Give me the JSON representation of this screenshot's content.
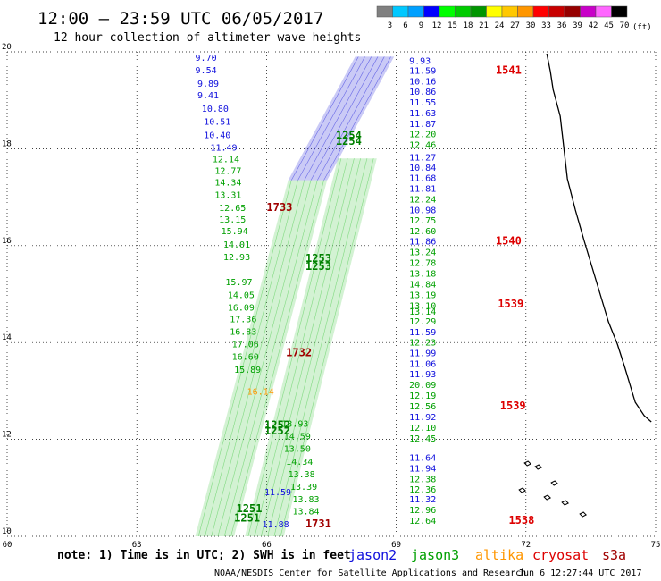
{
  "header": {
    "title": "12:00 – 23:59 UTC 06/05/2017",
    "subtitle": "12 hour collection of altimeter wave heights"
  },
  "color_scale": {
    "labels": [
      "3",
      "6",
      "9",
      "12",
      "15",
      "18",
      "21",
      "24",
      "27",
      "30",
      "33",
      "36",
      "39",
      "42",
      "45",
      "70"
    ],
    "colors": [
      "#808080",
      "#00c8ff",
      "#00a0ff",
      "#0000ff",
      "#00ff00",
      "#00cc00",
      "#009600",
      "#ffff00",
      "#ffc800",
      "#ff9600",
      "#ff0000",
      "#c80000",
      "#960000",
      "#c800c8",
      "#ff66ff",
      "#000000"
    ],
    "unit": "(ft)"
  },
  "legend": [
    {
      "name": "jason2",
      "color": "#1010dd"
    },
    {
      "name": "jason3",
      "color": "#00a000"
    },
    {
      "name": "altika",
      "color": "#ff9600"
    },
    {
      "name": "cryosat",
      "color": "#dd0000"
    },
    {
      "name": "s3a",
      "color": "#a00000"
    }
  ],
  "note": "note: 1) Time is in UTC; 2) SWH is in feet",
  "footer": {
    "credit": "NOAA/NESDIS Center for Satellite Applications and Research",
    "timestamp": "Jun  6 12:27:44 UTC 2017"
  },
  "chart_data": {
    "type": "scatter",
    "title": "12:00 – 23:59 UTC 06/05/2017",
    "subtitle": "12 hour collection of altimeter wave heights",
    "xlim": [
      60,
      75
    ],
    "ylim": [
      10,
      20
    ],
    "x_ticks": [
      60,
      63,
      66,
      69,
      72,
      75
    ],
    "y_ticks": [
      10,
      12,
      14,
      16,
      18,
      20
    ],
    "grid": true,
    "series": [
      {
        "name": "jason2",
        "color": "#1010dd",
        "points": [
          {
            "x": 64.35,
            "y": 19.82,
            "v": "9.70"
          },
          {
            "x": 64.35,
            "y": 19.56,
            "v": "9.54"
          },
          {
            "x": 64.4,
            "y": 19.28,
            "v": "9.89"
          },
          {
            "x": 64.4,
            "y": 19.04,
            "v": "9.41"
          },
          {
            "x": 64.5,
            "y": 18.76,
            "v": "10.80"
          },
          {
            "x": 64.55,
            "y": 18.5,
            "v": "10.51"
          },
          {
            "x": 64.55,
            "y": 18.22,
            "v": "10.40"
          },
          {
            "x": 64.7,
            "y": 17.96,
            "v": "11.49"
          },
          {
            "x": 65.9,
            "y": 10.18,
            "v": "11.88"
          },
          {
            "x": 65.95,
            "y": 10.85,
            "v": "11.59"
          },
          {
            "x": 69.3,
            "y": 19.75,
            "v": "9.93"
          },
          {
            "x": 69.3,
            "y": 19.55,
            "v": "11.59"
          },
          {
            "x": 69.3,
            "y": 19.33,
            "v": "10.16"
          },
          {
            "x": 69.3,
            "y": 19.11,
            "v": "10.86"
          },
          {
            "x": 69.3,
            "y": 18.89,
            "v": "11.55"
          },
          {
            "x": 69.3,
            "y": 18.67,
            "v": "11.63"
          },
          {
            "x": 69.3,
            "y": 18.45,
            "v": "11.87"
          },
          {
            "x": 69.3,
            "y": 17.76,
            "v": "11.27"
          },
          {
            "x": 69.3,
            "y": 17.55,
            "v": "10.84"
          },
          {
            "x": 69.3,
            "y": 17.33,
            "v": "11.68"
          },
          {
            "x": 69.3,
            "y": 17.11,
            "v": "11.81"
          },
          {
            "x": 69.3,
            "y": 16.67,
            "v": "10.98"
          },
          {
            "x": 69.3,
            "y": 16.02,
            "v": "11.86"
          },
          {
            "x": 69.3,
            "y": 14.15,
            "v": "11.59"
          },
          {
            "x": 69.3,
            "y": 13.72,
            "v": "11.99"
          },
          {
            "x": 69.3,
            "y": 13.5,
            "v": "11.06"
          },
          {
            "x": 69.3,
            "y": 13.28,
            "v": "11.93"
          },
          {
            "x": 69.3,
            "y": 12.4,
            "v": "11.92"
          },
          {
            "x": 69.3,
            "y": 11.56,
            "v": "11.64"
          },
          {
            "x": 69.3,
            "y": 11.34,
            "v": "11.94"
          },
          {
            "x": 69.3,
            "y": 10.7,
            "v": "11.32"
          }
        ]
      },
      {
        "name": "jason3",
        "color": "#00a000",
        "points": [
          {
            "x": 69.3,
            "y": 18.24,
            "v": "12.20"
          },
          {
            "x": 69.3,
            "y": 18.02,
            "v": "12.46"
          },
          {
            "x": 69.3,
            "y": 16.89,
            "v": "12.24"
          },
          {
            "x": 69.3,
            "y": 16.46,
            "v": "12.75"
          },
          {
            "x": 69.3,
            "y": 16.24,
            "v": "12.60"
          },
          {
            "x": 69.3,
            "y": 15.8,
            "v": "13.24"
          },
          {
            "x": 69.3,
            "y": 15.58,
            "v": "12.78"
          },
          {
            "x": 69.3,
            "y": 15.36,
            "v": "13.18"
          },
          {
            "x": 69.3,
            "y": 15.14,
            "v": "14.84"
          },
          {
            "x": 69.3,
            "y": 14.92,
            "v": "13.19"
          },
          {
            "x": 69.3,
            "y": 14.7,
            "v": "13.10"
          },
          {
            "x": 69.3,
            "y": 14.58,
            "v": "13.14"
          },
          {
            "x": 69.3,
            "y": 14.37,
            "v": "12.29"
          },
          {
            "x": 69.3,
            "y": 13.94,
            "v": "12.23"
          },
          {
            "x": 69.3,
            "y": 13.06,
            "v": "20.09"
          },
          {
            "x": 69.3,
            "y": 12.84,
            "v": "12.19"
          },
          {
            "x": 69.3,
            "y": 12.62,
            "v": "12.56"
          },
          {
            "x": 69.3,
            "y": 12.18,
            "v": "12.10"
          },
          {
            "x": 69.3,
            "y": 11.96,
            "v": "12.45"
          },
          {
            "x": 69.3,
            "y": 11.12,
            "v": "12.38"
          },
          {
            "x": 69.3,
            "y": 10.9,
            "v": "12.36"
          },
          {
            "x": 69.3,
            "y": 10.48,
            "v": "12.96"
          },
          {
            "x": 69.3,
            "y": 10.26,
            "v": "12.64"
          },
          {
            "x": 64.75,
            "y": 17.72,
            "v": "12.14"
          },
          {
            "x": 64.8,
            "y": 17.48,
            "v": "12.77"
          },
          {
            "x": 64.8,
            "y": 17.24,
            "v": "14.34"
          },
          {
            "x": 64.8,
            "y": 16.98,
            "v": "13.31"
          },
          {
            "x": 64.9,
            "y": 16.72,
            "v": "12.65"
          },
          {
            "x": 64.9,
            "y": 16.48,
            "v": "13.15"
          },
          {
            "x": 64.95,
            "y": 16.24,
            "v": "15.94"
          },
          {
            "x": 65.0,
            "y": 15.96,
            "v": "14.01"
          },
          {
            "x": 65.0,
            "y": 15.7,
            "v": "12.93"
          },
          {
            "x": 65.05,
            "y": 15.18,
            "v": "15.97"
          },
          {
            "x": 65.1,
            "y": 14.92,
            "v": "14.05"
          },
          {
            "x": 65.1,
            "y": 14.66,
            "v": "16.09"
          },
          {
            "x": 65.15,
            "y": 14.42,
            "v": "17.36"
          },
          {
            "x": 65.15,
            "y": 14.16,
            "v": "16.83"
          },
          {
            "x": 65.2,
            "y": 13.9,
            "v": "17.06"
          },
          {
            "x": 65.2,
            "y": 13.64,
            "v": "16.60"
          },
          {
            "x": 65.25,
            "y": 13.38,
            "v": "15.89"
          },
          {
            "x": 66.6,
            "y": 10.45,
            "v": "13.84"
          },
          {
            "x": 66.6,
            "y": 10.7,
            "v": "13.83"
          },
          {
            "x": 66.55,
            "y": 10.96,
            "v": "13.39"
          },
          {
            "x": 66.5,
            "y": 11.22,
            "v": "13.38"
          },
          {
            "x": 66.45,
            "y": 11.48,
            "v": "14.34"
          },
          {
            "x": 66.4,
            "y": 11.74,
            "v": "13.50"
          },
          {
            "x": 66.4,
            "y": 12.0,
            "v": "14.59"
          },
          {
            "x": 66.35,
            "y": 12.26,
            "v": "13.93"
          }
        ]
      },
      {
        "name": "altika",
        "color": "#ff9600",
        "points": [
          {
            "x": 65.55,
            "y": 12.92,
            "v": "16.14"
          }
        ]
      },
      {
        "name": "cryosat",
        "color": "#dd0000",
        "points": [
          {
            "x": 71.3,
            "y": 19.55,
            "v": "1541"
          },
          {
            "x": 71.3,
            "y": 16.02,
            "v": "1540"
          },
          {
            "x": 71.35,
            "y": 14.72,
            "v": "1539"
          },
          {
            "x": 71.4,
            "y": 12.62,
            "v": "1539"
          },
          {
            "x": 71.6,
            "y": 10.26,
            "v": "1538"
          }
        ]
      },
      {
        "name": "s3a",
        "color": "#a00000",
        "points": [
          {
            "x": 66.0,
            "y": 16.72,
            "v": "1733"
          },
          {
            "x": 66.45,
            "y": 13.72,
            "v": "1732"
          },
          {
            "x": 66.9,
            "y": 10.18,
            "v": "1731"
          }
        ]
      }
    ],
    "pass_times": [
      {
        "x": 67.9,
        "y": 18.2,
        "v": "1254",
        "color": "#008000"
      },
      {
        "x": 67.9,
        "y": 18.08,
        "v": "1254",
        "color": "#008000"
      },
      {
        "x": 67.2,
        "y": 15.66,
        "v": "1253",
        "color": "#008000"
      },
      {
        "x": 67.2,
        "y": 15.5,
        "v": "1253",
        "color": "#008000"
      },
      {
        "x": 66.25,
        "y": 12.22,
        "v": "1252",
        "color": "#008000"
      },
      {
        "x": 66.25,
        "y": 12.1,
        "v": "1252",
        "color": "#008000"
      },
      {
        "x": 65.6,
        "y": 10.5,
        "v": "1251",
        "color": "#008000"
      },
      {
        "x": 65.55,
        "y": 10.3,
        "v": "1251",
        "color": "#008000"
      }
    ],
    "track_bands": [
      {
        "color": "#4040e0",
        "from": [
          68.5,
          19.9
        ],
        "to": [
          66.95,
          17.35
        ],
        "width_deg": 0.9
      },
      {
        "color": "#60d060",
        "from": [
          66.95,
          17.35
        ],
        "to": [
          64.8,
          10.0
        ],
        "width_deg": 0.9
      },
      {
        "color": "#60d060",
        "from": [
          68.1,
          17.8
        ],
        "to": [
          65.95,
          10.0
        ],
        "width_deg": 0.9
      }
    ],
    "coastline_east_extent_deg": 74.9
  }
}
